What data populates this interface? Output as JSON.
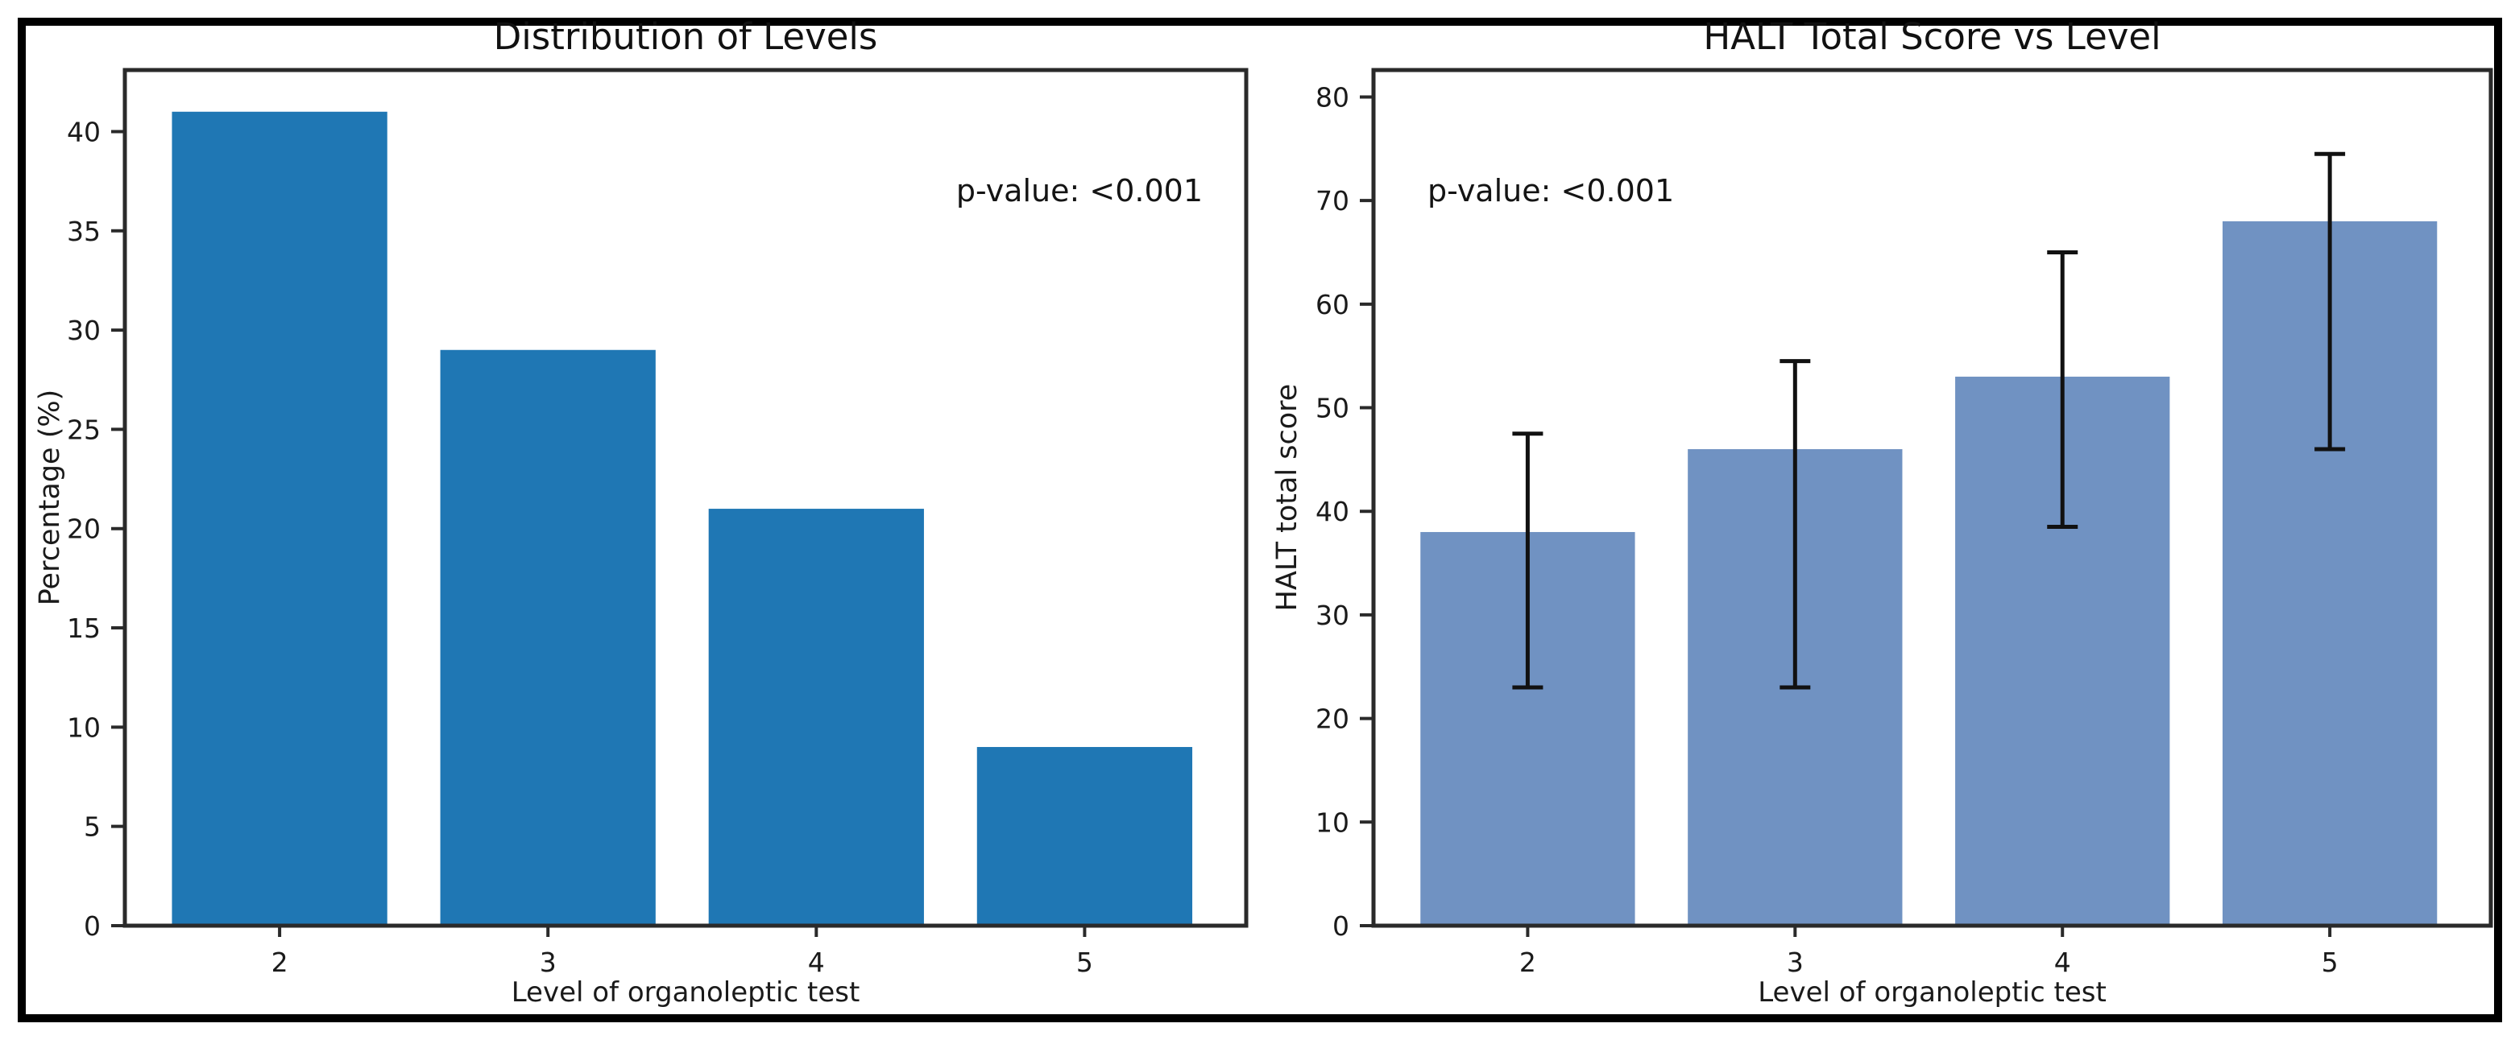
{
  "figure": {
    "background": "#ffffff",
    "border_color": "#000000",
    "axis_color": "#2a2a2a",
    "text_color": "#1a1a1a"
  },
  "chart_data": [
    {
      "type": "bar",
      "title": "Distribution of Levels",
      "xlabel": "Level of organoleptic test",
      "ylabel": "Percentage (%)",
      "annotation": "p-value: <0.001",
      "categories": [
        "2",
        "3",
        "4",
        "5"
      ],
      "values": [
        41,
        29,
        21,
        9
      ],
      "bar_color": "#1f77b4",
      "yticks": [
        0,
        5,
        10,
        15,
        20,
        25,
        30,
        35,
        40
      ],
      "ylim": [
        0,
        43.1
      ],
      "grid": false,
      "legend": null
    },
    {
      "type": "bar",
      "title": "HALT Total Score vs Level",
      "xlabel": "Level of organoleptic test",
      "ylabel": "HALT total score",
      "annotation": "p-value: <0.001",
      "categories": [
        "2",
        "3",
        "4",
        "5"
      ],
      "values": [
        38,
        46,
        53,
        68
      ],
      "error_low": [
        23,
        23,
        38.5,
        46
      ],
      "error_high": [
        47.5,
        54.5,
        65,
        74.5
      ],
      "bar_color": "#7092c2",
      "error_color": "#111111",
      "yticks": [
        0,
        10,
        20,
        30,
        40,
        50,
        60,
        70,
        80
      ],
      "ylim": [
        0,
        82.6
      ],
      "grid": false,
      "legend": null
    }
  ]
}
